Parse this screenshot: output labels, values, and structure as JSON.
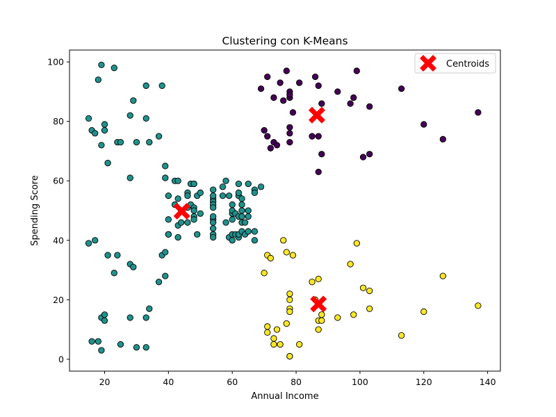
{
  "chart_data": {
    "type": "scatter",
    "title": "Clustering con K-Means",
    "xlabel": "Annual Income",
    "ylabel": "Spending Score",
    "xlim": [
      9,
      144
    ],
    "ylim": [
      -4,
      104
    ],
    "xticks": [
      20,
      40,
      60,
      80,
      100,
      120,
      140
    ],
    "yticks": [
      0,
      20,
      40,
      60,
      80,
      100
    ],
    "grid": false,
    "legend_position": "upper right",
    "legend": [
      {
        "label": "Centroids",
        "marker": "X",
        "color": "#ff0000"
      }
    ],
    "series": [
      {
        "color": "#440154",
        "points": [
          [
            69,
            91
          ],
          [
            71,
            95
          ],
          [
            72,
            71
          ],
          [
            71,
            75
          ],
          [
            73,
            88
          ],
          [
            73,
            73
          ],
          [
            74,
            72
          ],
          [
            70,
            77
          ],
          [
            75,
            93
          ],
          [
            76,
            87
          ],
          [
            77,
            97
          ],
          [
            78,
            90
          ],
          [
            78,
            88
          ],
          [
            78,
            89
          ],
          [
            78,
            76
          ],
          [
            78,
            78
          ],
          [
            78,
            73
          ],
          [
            79,
            83
          ],
          [
            81,
            93
          ],
          [
            85,
            75
          ],
          [
            86,
            95
          ],
          [
            87,
            75
          ],
          [
            87,
            92
          ],
          [
            88,
            86
          ],
          [
            88,
            69
          ],
          [
            87,
            63
          ],
          [
            93,
            90
          ],
          [
            97,
            86
          ],
          [
            98,
            88
          ],
          [
            99,
            97
          ],
          [
            101,
            68
          ],
          [
            103,
            69
          ],
          [
            103,
            85
          ],
          [
            113,
            91
          ],
          [
            120,
            79
          ],
          [
            126,
            74
          ],
          [
            137,
            83
          ]
        ]
      },
      {
        "color": "#21918c",
        "points": [
          [
            15,
            39
          ],
          [
            15,
            81
          ],
          [
            16,
            6
          ],
          [
            16,
            77
          ],
          [
            17,
            40
          ],
          [
            17,
            76
          ],
          [
            18,
            6
          ],
          [
            18,
            94
          ],
          [
            19,
            3
          ],
          [
            19,
            72
          ],
          [
            19,
            99
          ],
          [
            19,
            14
          ],
          [
            20,
            15
          ],
          [
            20,
            77
          ],
          [
            20,
            13
          ],
          [
            20,
            79
          ],
          [
            21,
            35
          ],
          [
            21,
            66
          ],
          [
            23,
            29
          ],
          [
            23,
            98
          ],
          [
            24,
            35
          ],
          [
            24,
            73
          ],
          [
            25,
            5
          ],
          [
            25,
            73
          ],
          [
            28,
            14
          ],
          [
            28,
            82
          ],
          [
            28,
            32
          ],
          [
            28,
            61
          ],
          [
            29,
            31
          ],
          [
            29,
            87
          ],
          [
            30,
            4
          ],
          [
            30,
            73
          ],
          [
            33,
            4
          ],
          [
            33,
            92
          ],
          [
            33,
            14
          ],
          [
            33,
            81
          ],
          [
            34,
            17
          ],
          [
            34,
            73
          ],
          [
            37,
            26
          ],
          [
            37,
            75
          ],
          [
            38,
            35
          ],
          [
            38,
            92
          ],
          [
            39,
            36
          ],
          [
            39,
            61
          ],
          [
            39,
            28
          ],
          [
            39,
            65
          ],
          [
            40,
            55
          ],
          [
            40,
            47
          ],
          [
            40,
            42
          ],
          [
            40,
            42
          ],
          [
            42,
            52
          ],
          [
            42,
            60
          ],
          [
            43,
            54
          ],
          [
            43,
            60
          ],
          [
            43,
            45
          ],
          [
            43,
            41
          ],
          [
            44,
            50
          ],
          [
            44,
            46
          ],
          [
            46,
            51
          ],
          [
            46,
            46
          ],
          [
            46,
            56
          ],
          [
            46,
            55
          ],
          [
            47,
            52
          ],
          [
            47,
            59
          ],
          [
            48,
            51
          ],
          [
            48,
            59
          ],
          [
            48,
            50
          ],
          [
            48,
            48
          ],
          [
            48,
            59
          ],
          [
            48,
            47
          ],
          [
            49,
            55
          ],
          [
            49,
            42
          ],
          [
            50,
            49
          ],
          [
            50,
            56
          ],
          [
            54,
            47
          ],
          [
            54,
            54
          ],
          [
            54,
            53
          ],
          [
            54,
            48
          ],
          [
            54,
            52
          ],
          [
            54,
            42
          ],
          [
            54,
            51
          ],
          [
            54,
            55
          ],
          [
            54,
            41
          ],
          [
            54,
            44
          ],
          [
            54,
            57
          ],
          [
            54,
            46
          ],
          [
            57,
            58
          ],
          [
            57,
            55
          ],
          [
            58,
            60
          ],
          [
            58,
            46
          ],
          [
            59,
            55
          ],
          [
            59,
            41
          ],
          [
            60,
            49
          ],
          [
            60,
            40
          ],
          [
            60,
            42
          ],
          [
            60,
            52
          ],
          [
            60,
            47
          ],
          [
            60,
            50
          ],
          [
            61,
            42
          ],
          [
            61,
            49
          ],
          [
            62,
            41
          ],
          [
            62,
            48
          ],
          [
            62,
            59
          ],
          [
            62,
            55
          ],
          [
            62,
            56
          ],
          [
            62,
            42
          ],
          [
            63,
            50
          ],
          [
            63,
            46
          ],
          [
            63,
            43
          ],
          [
            63,
            48
          ],
          [
            63,
            52
          ],
          [
            63,
            54
          ],
          [
            64,
            42
          ],
          [
            64,
            46
          ],
          [
            65,
            48
          ],
          [
            65,
            50
          ],
          [
            65,
            43
          ],
          [
            65,
            59
          ],
          [
            67,
            43
          ],
          [
            67,
            57
          ],
          [
            67,
            56
          ],
          [
            67,
            40
          ],
          [
            69,
            58
          ]
        ]
      },
      {
        "color": "#fde725",
        "points": [
          [
            70,
            29
          ],
          [
            71,
            11
          ],
          [
            71,
            9
          ],
          [
            71,
            35
          ],
          [
            72,
            34
          ],
          [
            73,
            5
          ],
          [
            73,
            7
          ],
          [
            74,
            10
          ],
          [
            75,
            5
          ],
          [
            76,
            40
          ],
          [
            77,
            12
          ],
          [
            77,
            36
          ],
          [
            78,
            22
          ],
          [
            78,
            17
          ],
          [
            78,
            20
          ],
          [
            78,
            16
          ],
          [
            78,
            1
          ],
          [
            78,
            1
          ],
          [
            79,
            35
          ],
          [
            81,
            5
          ],
          [
            85,
            26
          ],
          [
            86,
            20
          ],
          [
            87,
            27
          ],
          [
            87,
            13
          ],
          [
            87,
            10
          ],
          [
            88,
            13
          ],
          [
            88,
            15
          ],
          [
            93,
            14
          ],
          [
            97,
            32
          ],
          [
            98,
            15
          ],
          [
            99,
            39
          ],
          [
            101,
            24
          ],
          [
            103,
            17
          ],
          [
            103,
            23
          ],
          [
            113,
            8
          ],
          [
            120,
            16
          ],
          [
            126,
            28
          ],
          [
            137,
            18
          ]
        ]
      }
    ],
    "centroids": [
      [
        86.5,
        82.1
      ],
      [
        44.2,
        49.8
      ],
      [
        87.0,
        18.6
      ]
    ]
  }
}
